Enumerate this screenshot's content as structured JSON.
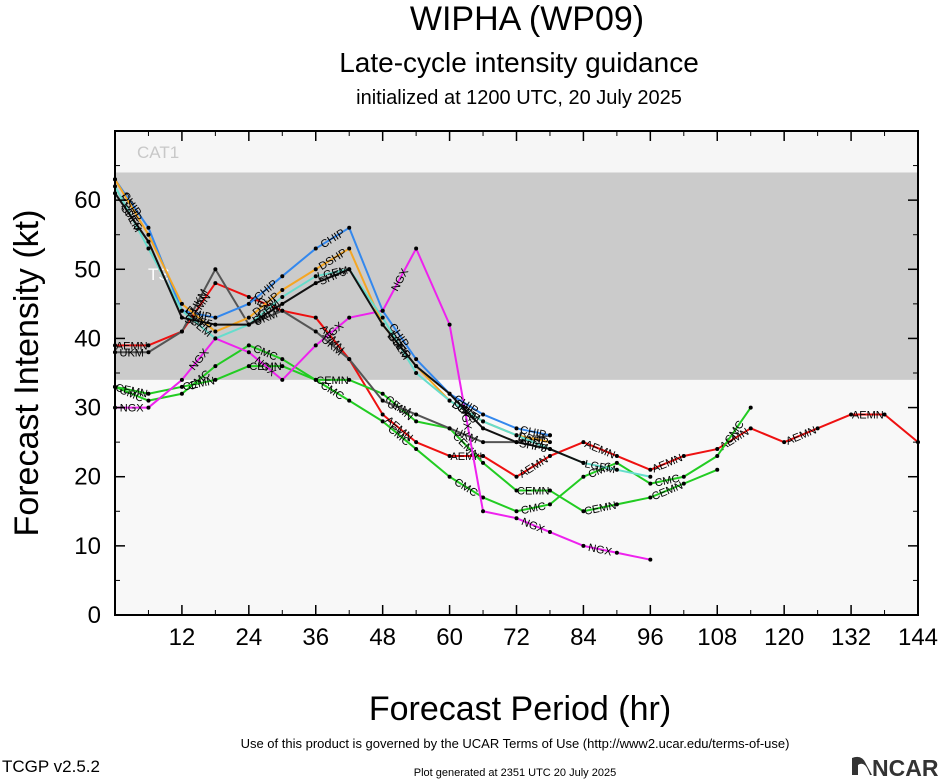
{
  "chart_data": {
    "type": "line",
    "title": "WIPHA (WP09)",
    "subtitle": "Late-cycle intensity guidance",
    "subtitle2": "initialized at 1200 UTC, 20 July 2025",
    "xlabel": "Forecast Period (hr)",
    "ylabel": "Forecast Intensity (kt)",
    "xlim": [
      0,
      144
    ],
    "ylim": [
      0,
      70
    ],
    "x_ticks": [
      12,
      24,
      36,
      48,
      60,
      72,
      84,
      96,
      108,
      120,
      132,
      144
    ],
    "y_ticks": [
      0,
      10,
      20,
      30,
      40,
      50,
      60
    ],
    "grid": false,
    "bands": [
      {
        "label": "CAT1",
        "y0": 64,
        "y1": 70,
        "color": "#f6f6f6"
      },
      {
        "label": "TS",
        "y0": 34,
        "y1": 64,
        "color": "#cbcbcb"
      },
      {
        "label": "",
        "y0": 0,
        "y1": 34,
        "color": "#f8f8f8"
      }
    ],
    "series": [
      {
        "name": "AEMN",
        "color": "#ee1111",
        "x": [
          0,
          6,
          12,
          18,
          24,
          30,
          36,
          42,
          48,
          54,
          60,
          66,
          72,
          78,
          84,
          90,
          96,
          102,
          108,
          114,
          120,
          126,
          132,
          138,
          144
        ],
        "y": [
          39,
          39,
          41,
          48,
          46,
          44,
          43,
          37,
          29,
          25,
          23,
          23,
          20,
          23,
          25,
          23,
          21,
          23,
          24,
          27,
          25,
          27,
          29,
          29,
          25
        ]
      },
      {
        "name": "CMC",
        "color": "#22cc22",
        "x": [
          0,
          6,
          12,
          18,
          24,
          30,
          36,
          42,
          48,
          54,
          60,
          66,
          72,
          78,
          84,
          90,
          96,
          102,
          108,
          114
        ],
        "y": [
          33,
          31,
          32,
          36,
          39,
          37,
          34,
          31,
          28,
          24,
          20,
          17,
          15,
          16,
          20,
          22,
          19,
          20,
          23,
          30
        ]
      },
      {
        "name": "CEMN",
        "color": "#22cc22",
        "x": [
          0,
          6,
          12,
          18,
          24,
          30,
          36,
          42,
          48,
          54,
          60,
          66,
          72,
          78,
          84,
          90,
          96,
          102,
          108
        ],
        "y": [
          33,
          32,
          33,
          34,
          36,
          36,
          34,
          34,
          32,
          28,
          27,
          22,
          18,
          18,
          15,
          16,
          17,
          19,
          21
        ]
      },
      {
        "name": "NGX",
        "color": "#ee22ee",
        "x": [
          0,
          6,
          12,
          18,
          24,
          30,
          36,
          42,
          48,
          54,
          60,
          66,
          72,
          78,
          84,
          90,
          96
        ],
        "y": [
          30,
          30,
          34,
          40,
          38,
          34,
          39,
          43,
          44,
          53,
          42,
          15,
          14,
          12,
          10,
          9,
          8
        ]
      },
      {
        "name": "UKM",
        "color": "#555555",
        "x": [
          0,
          6,
          12,
          18,
          24,
          30,
          36,
          42,
          48,
          54,
          60,
          66,
          72,
          78
        ],
        "y": [
          38,
          38,
          41,
          50,
          42,
          44,
          41,
          37,
          31,
          29,
          27,
          25,
          25,
          26
        ]
      },
      {
        "name": "CHIP",
        "color": "#3388ee",
        "x": [
          0,
          6,
          12,
          18,
          24,
          30,
          36,
          42,
          48,
          54,
          60,
          66,
          72,
          78
        ],
        "y": [
          63,
          56,
          44,
          43,
          45,
          49,
          53,
          56,
          44,
          37,
          32,
          29,
          27,
          26
        ]
      },
      {
        "name": "DSHP",
        "color": "#f5a623",
        "x": [
          0,
          6,
          12,
          18,
          24,
          30,
          36,
          42,
          48,
          54,
          60,
          66,
          72,
          78
        ],
        "y": [
          63,
          55,
          45,
          41,
          43,
          47,
          50,
          53,
          42,
          36,
          31,
          28,
          26,
          25
        ]
      },
      {
        "name": "LGEM",
        "color": "#66ddcc",
        "x": [
          0,
          6,
          12,
          18,
          24,
          30,
          36,
          42,
          48,
          54,
          60,
          66,
          72,
          78,
          84,
          90,
          96
        ],
        "y": [
          62,
          53,
          44,
          40,
          42,
          46,
          49,
          50,
          43,
          35,
          31,
          28,
          26,
          24,
          22,
          21,
          20
        ]
      },
      {
        "name": "SHF5",
        "color": "#111111",
        "x": [
          0,
          6,
          12,
          18,
          24,
          30,
          36,
          42,
          48,
          54,
          60,
          66,
          72,
          78,
          84
        ],
        "y": [
          61,
          54,
          43,
          42,
          42,
          45,
          48,
          50,
          42,
          36,
          32,
          27,
          25,
          24,
          22
        ]
      }
    ]
  },
  "footer": {
    "terms": "Use of this product is governed by the UCAR Terms of Use (http://www2.ucar.edu/terms-of-use)",
    "version": "TCGP v2.5.2",
    "generated": "Plot generated at 2351 UTC   20 July 2025",
    "logo_text": "NCAR"
  }
}
